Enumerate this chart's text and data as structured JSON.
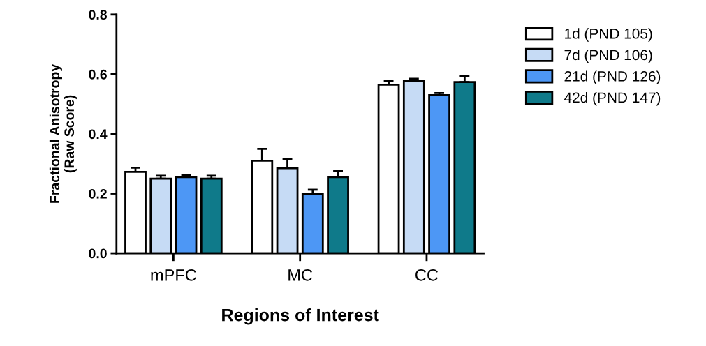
{
  "chart_data": {
    "type": "bar",
    "xlabel": "Regions of Interest",
    "ylabel": "Fractional Anisotropy\n(Raw Score)",
    "categories": [
      "mPFC",
      "MC",
      "CC"
    ],
    "series": [
      {
        "name": "1d (PND 105)",
        "color": "#ffffff",
        "values": [
          0.273,
          0.31,
          0.565
        ],
        "errors": [
          [
            0.273,
            0.287
          ],
          [
            0.31,
            0.35
          ],
          [
            0.565,
            0.578
          ]
        ]
      },
      {
        "name": "7d (PND 106)",
        "color": "#c6dbf5",
        "values": [
          0.25,
          0.285,
          0.578
        ],
        "errors": [
          [
            0.25,
            0.26
          ],
          [
            0.285,
            0.315
          ],
          [
            0.578,
            0.585
          ]
        ]
      },
      {
        "name": "21d (PND 126)",
        "color": "#4d97f5",
        "values": [
          0.255,
          0.198,
          0.53
        ],
        "errors": [
          [
            0.255,
            0.263
          ],
          [
            0.198,
            0.213
          ],
          [
            0.53,
            0.537
          ]
        ]
      },
      {
        "name": "42d (PND 147)",
        "color": "#0f7a8a",
        "values": [
          0.25,
          0.255,
          0.574
        ],
        "errors": [
          [
            0.25,
            0.26
          ],
          [
            0.255,
            0.277
          ],
          [
            0.574,
            0.595
          ]
        ]
      }
    ],
    "ylim": [
      0,
      0.8
    ],
    "yticks": [
      {
        "value": 0,
        "label": "0.0"
      },
      0.2,
      0.4,
      0.6,
      0.8
    ],
    "legend": "top right",
    "grid": false
  }
}
